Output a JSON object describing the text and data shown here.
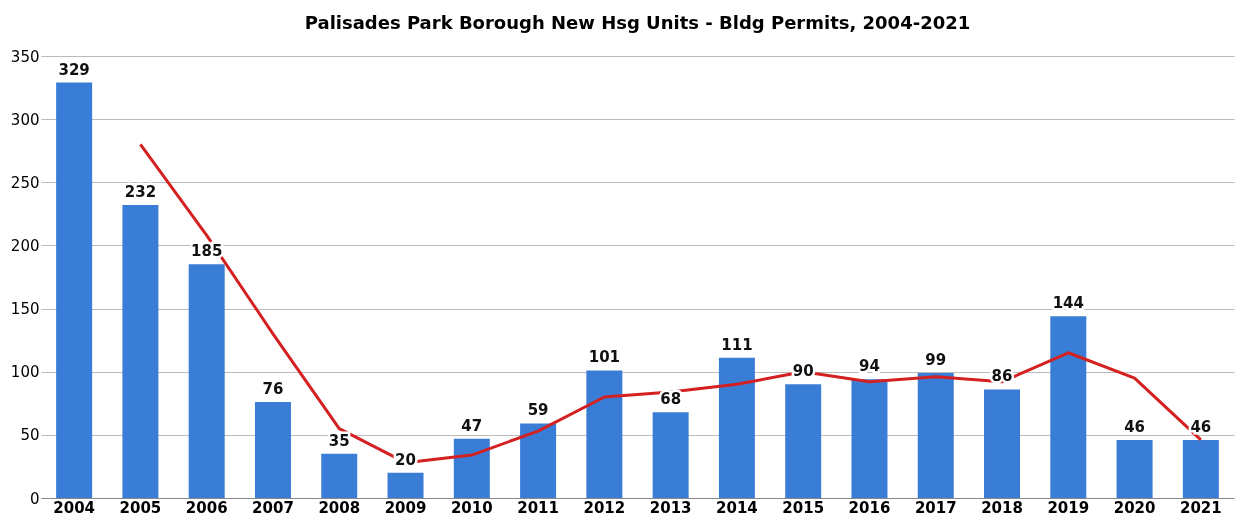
{
  "chart_data": {
    "type": "bar",
    "title": "Palisades Park Borough New Hsg Units - Bldg Permits, 2004-2021",
    "categories": [
      "2004",
      "2005",
      "2006",
      "2007",
      "2008",
      "2009",
      "2010",
      "2011",
      "2012",
      "2013",
      "2014",
      "2015",
      "2016",
      "2017",
      "2018",
      "2019",
      "2020",
      "2021"
    ],
    "series": [
      {
        "color": "#3a7dd6",
        "values": [
          329,
          232,
          185,
          76,
          35,
          20,
          47,
          59,
          101,
          68,
          111,
          90,
          94,
          99,
          86,
          144,
          46,
          46
        ],
        "value_labels": [
          "329",
          "232",
          "185",
          "76",
          "35",
          "20",
          "47",
          "59",
          "101",
          "68",
          "111",
          "90",
          "94",
          "99",
          "86",
          "144",
          "46",
          "46"
        ]
      },
      {
        "type": "line",
        "color": "#d42020",
        "values": [
          null,
          280,
          208,
          130,
          55,
          28,
          34,
          53,
          80,
          84,
          90,
          100,
          92,
          96,
          92,
          115,
          95,
          46
        ]
      }
    ],
    "ylim": [
      0,
      350
    ],
    "yticks": [
      0,
      50,
      100,
      150,
      200,
      250,
      300,
      350
    ],
    "grid": "y",
    "marker": "none",
    "line_style": "solid"
  }
}
